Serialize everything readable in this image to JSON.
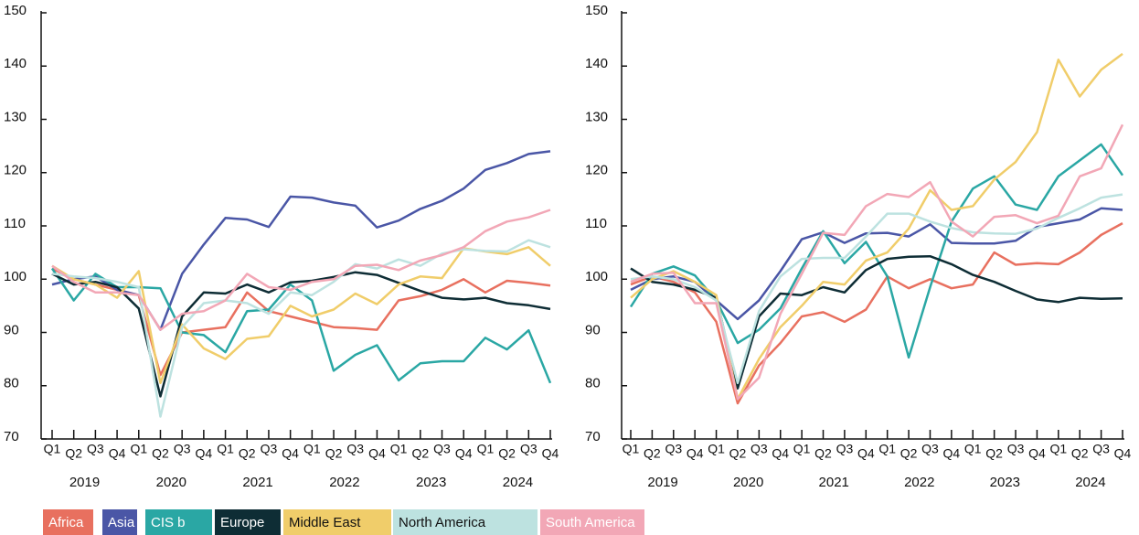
{
  "chart_data": [
    {
      "type": "line",
      "categories": [
        "Q1",
        "Q2",
        "Q3",
        "Q4",
        "Q1",
        "Q2",
        "Q3",
        "Q4",
        "Q1",
        "Q2",
        "Q3",
        "Q4",
        "Q1",
        "Q2",
        "Q3",
        "Q4",
        "Q1",
        "Q2",
        "Q3",
        "Q4",
        "Q1",
        "Q2",
        "Q3",
        "Q4"
      ],
      "years": [
        "2019",
        "2020",
        "2021",
        "2022",
        "2023",
        "2024"
      ],
      "ylim": [
        70,
        150
      ],
      "yticks": [
        70,
        80,
        90,
        100,
        110,
        120,
        130,
        140,
        150
      ],
      "grid": false,
      "series": [
        {
          "name": "Africa",
          "color": "#e8705f",
          "values": [
            102,
            100,
            99,
            98,
            97,
            82,
            90,
            90.5,
            91,
            97.5,
            94,
            93,
            92,
            91,
            90.8,
            90.5,
            96,
            96.8,
            98,
            100,
            97.5,
            99.7,
            99.3,
            98.8
          ]
        },
        {
          "name": "Asia",
          "color": "#4a56a6",
          "values": [
            99,
            100,
            100.5,
            98,
            97,
            90.5,
            101,
            106.5,
            111.5,
            111.2,
            109.8,
            115.5,
            115.3,
            114.4,
            113.8,
            109.7,
            111,
            113.2,
            114.7,
            117,
            120.5,
            121.8,
            123.5,
            124
          ]
        },
        {
          "name": "CIS b",
          "color": "#2aa7a4",
          "values": [
            102,
            96,
            101,
            98.5,
            98.5,
            98.3,
            90,
            89.5,
            86.3,
            94,
            94.3,
            99,
            96,
            82.8,
            85.8,
            87.6,
            81,
            84.2,
            84.6,
            84.6,
            89,
            86.8,
            90.4,
            80.5
          ]
        },
        {
          "name": "Europe",
          "color": "#0e2d35",
          "values": [
            101,
            99,
            99.5,
            98.5,
            94.5,
            78,
            93,
            97.5,
            97.3,
            99,
            97.5,
            99.4,
            99.7,
            100.4,
            101.3,
            100.8,
            99.3,
            97.8,
            96.5,
            96.2,
            96.5,
            95.5,
            95.1,
            94.4
          ]
        },
        {
          "name": "Middle East",
          "color": "#f0cd6a",
          "values": [
            102.5,
            100,
            99,
            96.5,
            101.5,
            80.5,
            91.5,
            87,
            85,
            88.8,
            89.3,
            95,
            93,
            94.3,
            97.3,
            95.3,
            99,
            100.5,
            100.2,
            105.8,
            105.2,
            104.7,
            106,
            102.5
          ]
        },
        {
          "name": "North America",
          "color": "#bde2e0",
          "values": [
            101,
            100.5,
            100.2,
            99.5,
            98.5,
            74.2,
            91,
            95.5,
            96,
            95.5,
            93.5,
            97.5,
            97,
            99.5,
            102.8,
            102,
            103.7,
            102.5,
            104.8,
            105.6,
            105.3,
            105.2,
            107.3,
            106
          ]
        },
        {
          "name": "South America",
          "color": "#f2a7b6",
          "values": [
            102.5,
            99.5,
            97.5,
            97.5,
            97,
            90.5,
            93.5,
            94,
            96,
            101,
            98.5,
            98,
            99.5,
            100,
            102.5,
            102.7,
            101.7,
            103.5,
            104.5,
            106,
            109,
            110.8,
            111.6,
            113
          ]
        }
      ]
    },
    {
      "type": "line",
      "categories": [
        "Q1",
        "Q2",
        "Q3",
        "Q4",
        "Q1",
        "Q2",
        "Q3",
        "Q4",
        "Q1",
        "Q2",
        "Q3",
        "Q4",
        "Q1",
        "Q2",
        "Q3",
        "Q4",
        "Q1",
        "Q2",
        "Q3",
        "Q4",
        "Q1",
        "Q2",
        "Q3",
        "Q4"
      ],
      "years": [
        "2019",
        "2020",
        "2021",
        "2022",
        "2023",
        "2024"
      ],
      "ylim": [
        70,
        150
      ],
      "yticks": [
        70,
        80,
        90,
        100,
        110,
        120,
        130,
        140,
        150
      ],
      "grid": false,
      "series": [
        {
          "name": "Africa",
          "color": "#e8705f",
          "values": [
            99,
            100.5,
            99.5,
            97.5,
            92,
            76.7,
            83.8,
            88,
            93,
            93.8,
            92,
            94.3,
            100.5,
            98.3,
            100,
            98.3,
            99,
            105,
            102.7,
            103,
            102.8,
            105,
            108.3,
            110.5
          ]
        },
        {
          "name": "Asia",
          "color": "#4a56a6",
          "values": [
            98,
            100,
            100.5,
            99.5,
            96,
            92.5,
            96,
            101.5,
            107.5,
            108.8,
            106.8,
            108.6,
            108.7,
            108,
            110.3,
            106.8,
            106.7,
            106.7,
            107.2,
            109.8,
            110.5,
            111.2,
            113.3,
            113
          ]
        },
        {
          "name": "CIS b",
          "color": "#2aa7a4",
          "values": [
            94.8,
            101,
            102.4,
            100.7,
            96,
            88,
            90.5,
            94.5,
            102,
            109,
            103,
            107,
            100.5,
            85.3,
            98.5,
            110.8,
            117,
            119.3,
            114,
            113,
            119.3,
            122.3,
            125.3,
            119.5
          ]
        },
        {
          "name": "Europe",
          "color": "#0e2d35",
          "values": [
            102,
            99.5,
            99,
            98,
            96.5,
            79.5,
            93,
            97.3,
            97,
            98.5,
            97.5,
            101.7,
            103.8,
            104.2,
            104.3,
            102.8,
            100.8,
            99.5,
            97.8,
            96.2,
            95.7,
            96.5,
            96.3,
            96.4
          ]
        },
        {
          "name": "Middle East",
          "color": "#f0cd6a",
          "values": [
            96.5,
            100,
            101.5,
            99.5,
            97,
            77.5,
            85,
            91,
            95,
            99.5,
            99,
            103.5,
            105,
            109.5,
            116.7,
            113,
            113.7,
            118.7,
            122,
            127.6,
            141.2,
            134.3,
            139.3,
            142.3
          ]
        },
        {
          "name": "North America",
          "color": "#bde2e0",
          "values": [
            100,
            100.5,
            100,
            98.5,
            96,
            80.5,
            94,
            100.5,
            103.8,
            104,
            104,
            108,
            112.3,
            112.3,
            110.8,
            109.6,
            108.8,
            108.6,
            108.5,
            109.5,
            111.5,
            113.3,
            115.3,
            115.9
          ]
        },
        {
          "name": "South America",
          "color": "#f2a7b6",
          "values": [
            99.5,
            101,
            101.2,
            95.5,
            95.5,
            77.5,
            81.5,
            93.5,
            101,
            108.7,
            108.3,
            113.7,
            116,
            115.4,
            118.2,
            110.8,
            108,
            111.7,
            112,
            110.5,
            111.9,
            119.3,
            120.8,
            129
          ]
        }
      ]
    }
  ]
}
